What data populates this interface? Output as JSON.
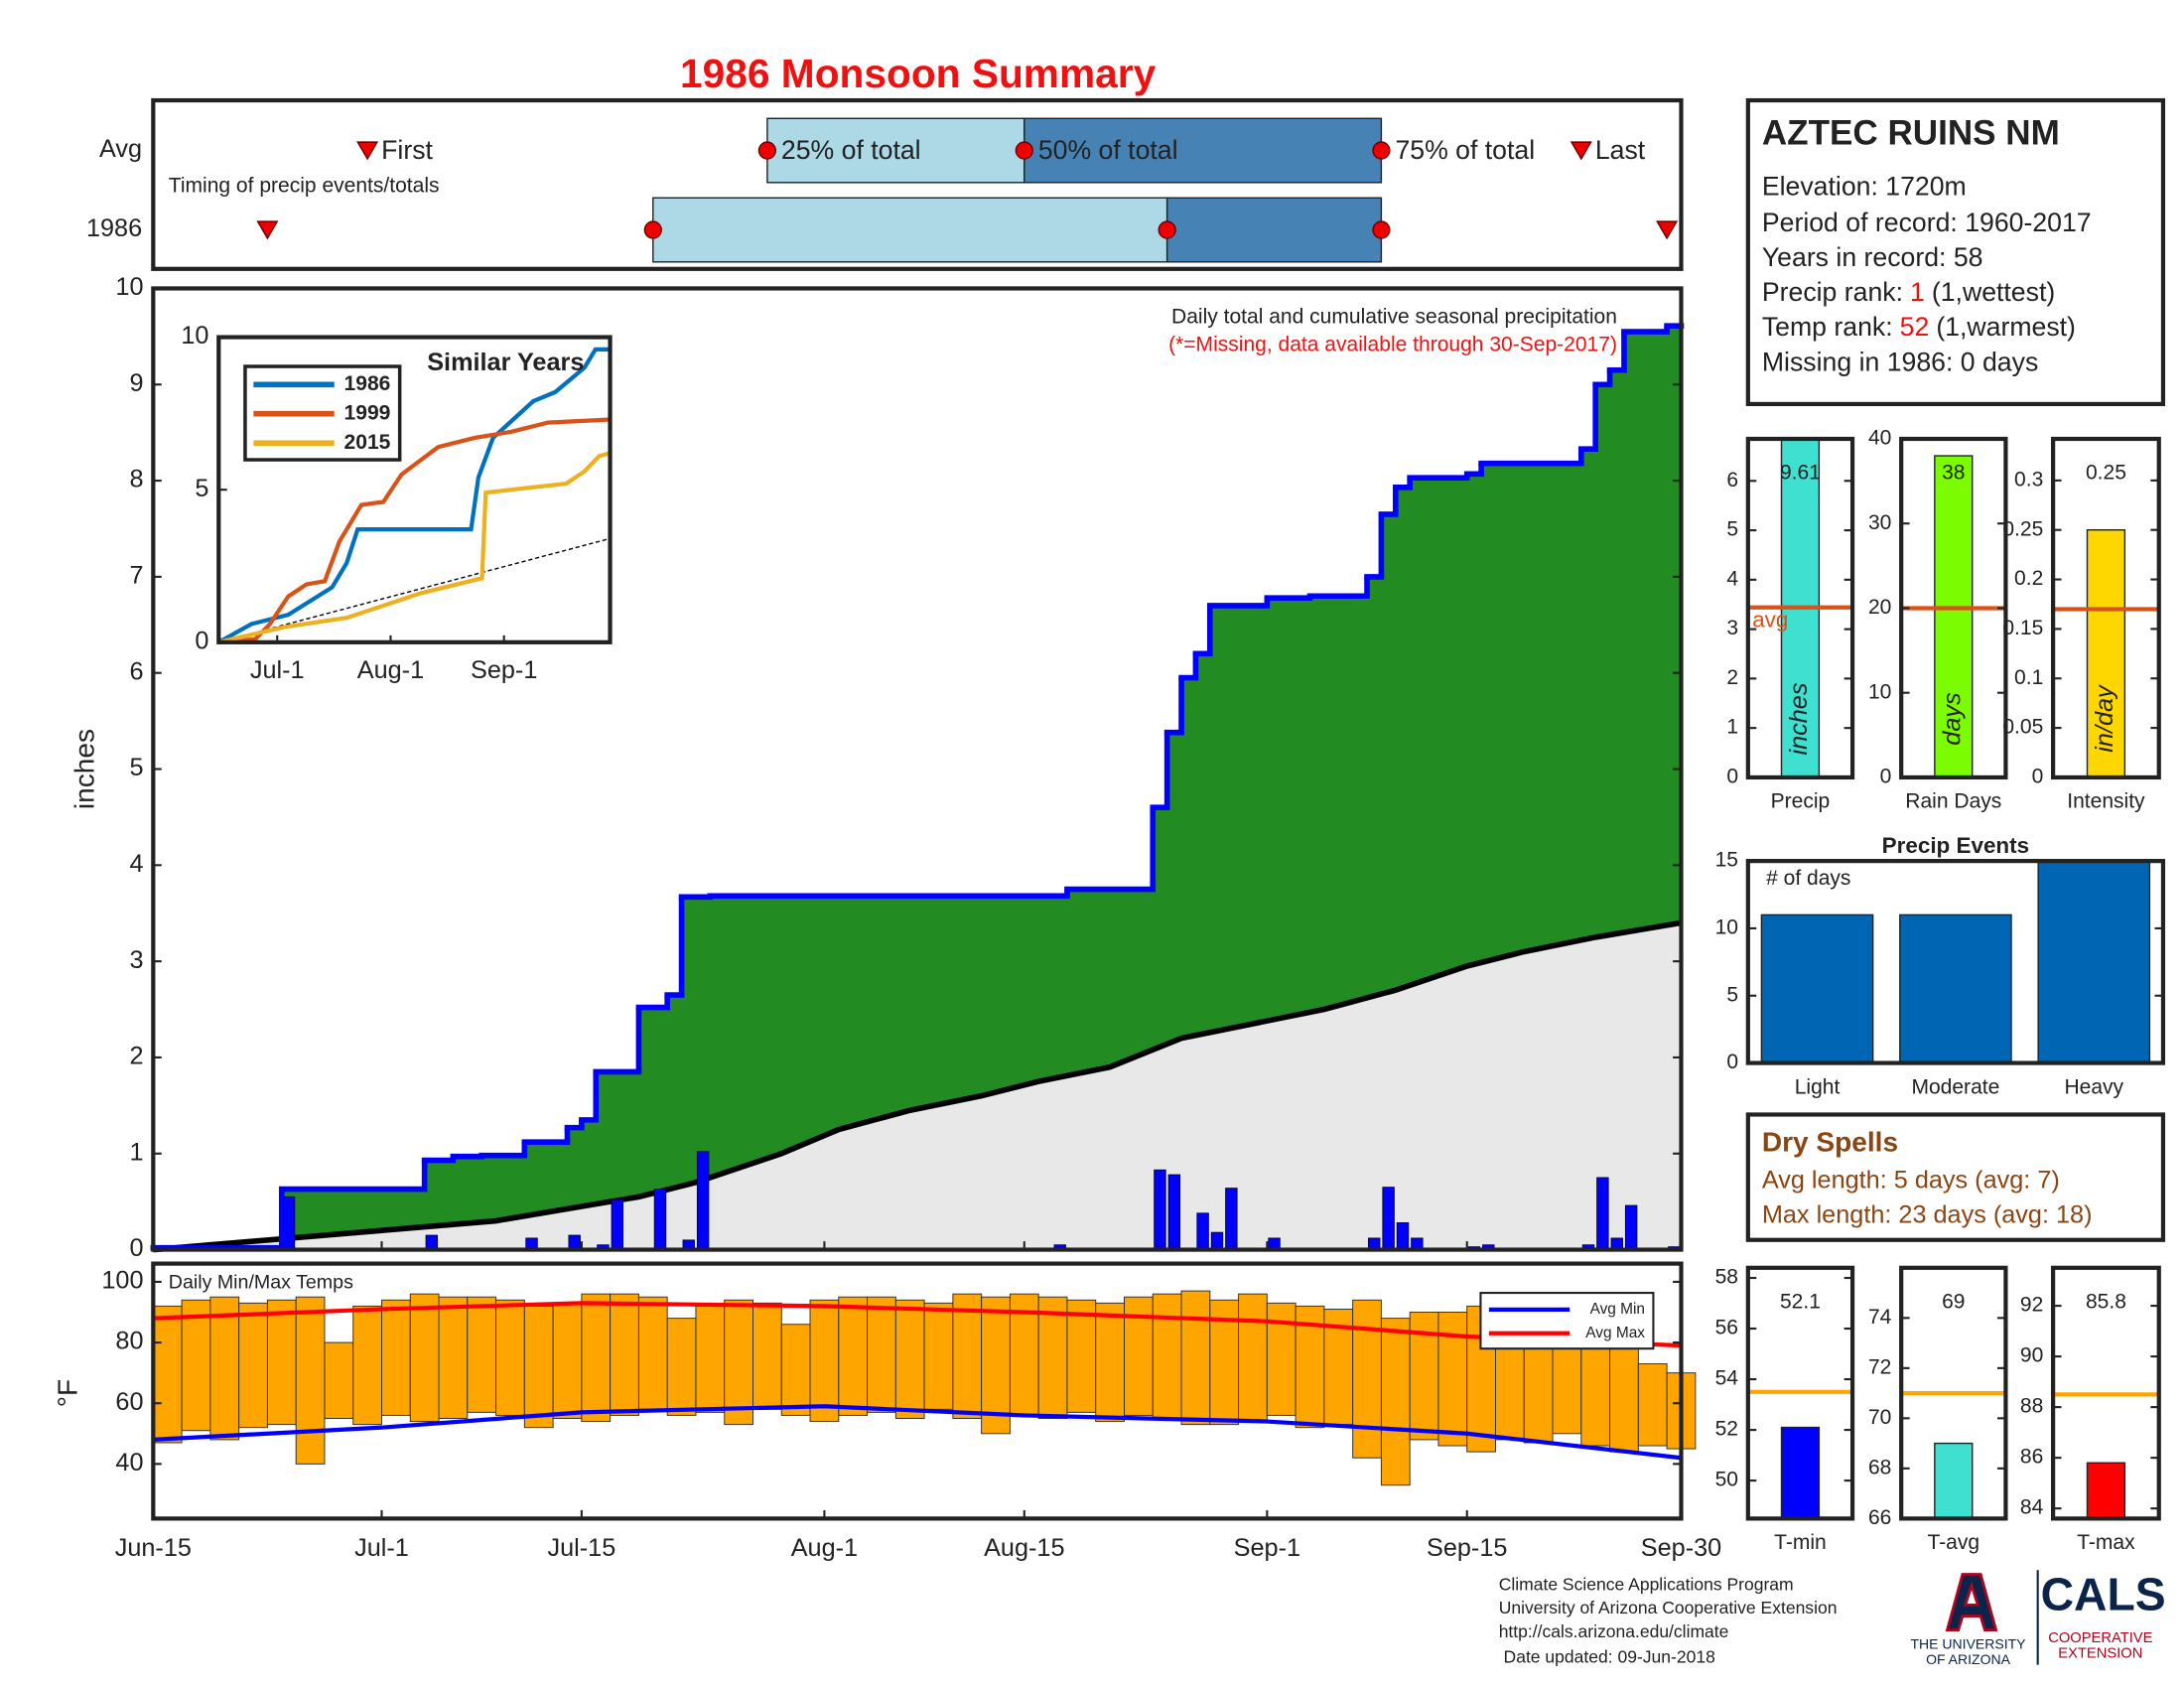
{
  "title": "1986 Monsoon Summary",
  "chart_data": [
    {
      "type": "timing",
      "title": "Timing of precip events/totals",
      "xlim": [
        0,
        107
      ],
      "rows": [
        {
          "name": "Avg",
          "first": 15,
          "q25": 43,
          "q50": 61,
          "q75": 86,
          "last": 100
        },
        {
          "name": "1986",
          "first": 8,
          "q25": 35,
          "q50": 71,
          "q75": 86,
          "last": 106
        }
      ],
      "labels": {
        "first": "First",
        "q25": "25% of total",
        "q50": "50% of total",
        "q75": "75% of total",
        "last": "Last"
      }
    },
    {
      "type": "precip",
      "title": "Daily total and cumulative seasonal precipitation",
      "subtitle": "(*=Missing, data available through 30-Sep-2017)",
      "y_label": "inches",
      "xlim": [
        0,
        107
      ],
      "ylim": [
        0,
        10
      ],
      "yticks": [
        0,
        1,
        2,
        3,
        4,
        5,
        6,
        7,
        8,
        9,
        10
      ],
      "fill_colors": {
        "above": "#228b22",
        "below": "#e8e8e8"
      },
      "cumulative": {
        "color": "#0000ff",
        "x": [
          0,
          9,
          19,
          21,
          23,
          26,
          29,
          30,
          31,
          34,
          36,
          37,
          39,
          64,
          70,
          71,
          72,
          73,
          74,
          78,
          81,
          85,
          86,
          87,
          88,
          92,
          93,
          100,
          101,
          102,
          103,
          106
        ],
        "values": [
          0.02,
          0.63,
          0.93,
          0.97,
          0.98,
          1.12,
          1.27,
          1.35,
          1.85,
          2.52,
          2.65,
          3.67,
          3.68,
          3.75,
          4.6,
          5.38,
          5.95,
          6.2,
          6.7,
          6.78,
          6.8,
          7,
          7.65,
          7.93,
          8.03,
          8.07,
          8.18,
          8.33,
          9,
          9.15,
          9.55,
          9.61
        ]
      },
      "average_cumulative": {
        "color": "#000000",
        "x": [
          0,
          16,
          24,
          34,
          38,
          44,
          48,
          53,
          58,
          62,
          67,
          72,
          77,
          82,
          87,
          92,
          96,
          101,
          107
        ],
        "values": [
          0,
          0.2,
          0.3,
          0.55,
          0.7,
          1,
          1.25,
          1.45,
          1.6,
          1.75,
          1.9,
          2.2,
          2.35,
          2.5,
          2.7,
          2.95,
          3.1,
          3.25,
          3.4
        ]
      },
      "daily": {
        "color": "#0000ff",
        "x": [
          9,
          19,
          26,
          29,
          31,
          32,
          35,
          37,
          38,
          63,
          70,
          71,
          73,
          74,
          75,
          78,
          85,
          86,
          87,
          88,
          92,
          93,
          100,
          101,
          102,
          103,
          106
        ],
        "values": [
          0.55,
          0.15,
          0.12,
          0.15,
          0.05,
          0.52,
          0.63,
          0.1,
          1.02,
          0.05,
          0.83,
          0.78,
          0.38,
          0.18,
          0.64,
          0.12,
          0.12,
          0.65,
          0.28,
          0.12,
          0.03,
          0.05,
          0.05,
          0.75,
          0.12,
          0.46,
          0.03
        ]
      }
    },
    {
      "type": "line",
      "title": "Similar Years",
      "xlim": [
        0,
        107
      ],
      "ylim": [
        0,
        10
      ],
      "yticks": [
        0,
        5,
        10
      ],
      "xticks": [
        {
          "value": 16,
          "label": "Jul-1"
        },
        {
          "value": 47,
          "label": "Aug-1"
        },
        {
          "value": 78,
          "label": "Sep-1"
        }
      ],
      "series": [
        {
          "name": "1986",
          "color": "#0072bd",
          "x": [
            0,
            9,
            19,
            31,
            35,
            38,
            69,
            71,
            75,
            86,
            92,
            100,
            103,
            107
          ],
          "values": [
            0,
            0.6,
            0.9,
            1.8,
            2.6,
            3.7,
            3.7,
            5.4,
            6.7,
            7.9,
            8.2,
            9,
            9.6,
            9.6
          ]
        },
        {
          "name": "1999",
          "color": "#d95319",
          "x": [
            0,
            10,
            14,
            19,
            24,
            29,
            33,
            39,
            45,
            50,
            60,
            70,
            80,
            90,
            107
          ],
          "values": [
            0,
            0.1,
            0.6,
            1.5,
            1.9,
            2,
            3.3,
            4.5,
            4.6,
            5.5,
            6.4,
            6.7,
            6.9,
            7.2,
            7.3
          ]
        },
        {
          "name": "2015",
          "color": "#edb120",
          "x": [
            0,
            18,
            35,
            45,
            55,
            72,
            73,
            80,
            95,
            100,
            104,
            107
          ],
          "values": [
            0,
            0.5,
            0.8,
            1.2,
            1.6,
            2.1,
            4.9,
            5,
            5.2,
            5.6,
            6.1,
            6.2
          ]
        }
      ],
      "average": {
        "color": "#000000",
        "x": [
          0,
          107
        ],
        "values": [
          0,
          3.4
        ]
      }
    },
    {
      "type": "temps",
      "title": "Daily Min/Max Temps",
      "y_label": "°F",
      "xlim": [
        0,
        107
      ],
      "ylim": [
        22,
        106
      ],
      "yticks": [
        40,
        60,
        80,
        100
      ],
      "xticks": [
        {
          "value": 0,
          "label": "Jun-15"
        },
        {
          "value": 16,
          "label": "Jul-1"
        },
        {
          "value": 30,
          "label": "Jul-15"
        },
        {
          "value": 47,
          "label": "Aug-1"
        },
        {
          "value": 61,
          "label": "Aug-15"
        },
        {
          "value": 78,
          "label": "Sep-1"
        },
        {
          "value": 92,
          "label": "Sep-15"
        },
        {
          "value": 107,
          "label": "Sep-30"
        }
      ],
      "bar_color": "#ffa500",
      "legend": "upper right",
      "x": [
        0,
        2,
        4,
        6,
        8,
        10,
        12,
        14,
        16,
        18,
        20,
        22,
        24,
        26,
        28,
        30,
        32,
        34,
        36,
        38,
        40,
        42,
        44,
        46,
        48,
        50,
        52,
        54,
        56,
        58,
        60,
        62,
        64,
        66,
        68,
        70,
        72,
        74,
        76,
        78,
        80,
        82,
        84,
        86,
        88,
        90,
        92,
        94,
        96,
        98,
        100,
        102,
        104,
        106
      ],
      "max": [
        92,
        94,
        95,
        93,
        94,
        95,
        80,
        92,
        94,
        96,
        95,
        95,
        94,
        92,
        93,
        96,
        96,
        95,
        88,
        92,
        94,
        93,
        86,
        94,
        95,
        95,
        94,
        93,
        96,
        95,
        96,
        95,
        94,
        93,
        95,
        96,
        97,
        94,
        96,
        93,
        92,
        91,
        94,
        88,
        90,
        90,
        92,
        89,
        83,
        85,
        88,
        84,
        73,
        70
      ],
      "min": [
        47,
        51,
        48,
        52,
        53,
        40,
        55,
        53,
        56,
        54,
        55,
        57,
        56,
        52,
        55,
        54,
        56,
        58,
        56,
        57,
        53,
        58,
        56,
        54,
        56,
        57,
        55,
        58,
        55,
        50,
        56,
        55,
        57,
        54,
        56,
        55,
        53,
        53,
        54,
        56,
        52,
        53,
        42,
        33,
        48,
        46,
        44,
        48,
        47,
        50,
        46,
        44,
        46,
        45
      ],
      "series": [
        {
          "name": "Avg Min",
          "color": "#0000ff",
          "x": [
            0,
            16,
            30,
            47,
            61,
            78,
            92,
            107
          ],
          "values": [
            48,
            52,
            57,
            59,
            56,
            54,
            50,
            42
          ]
        },
        {
          "name": "Avg Max",
          "color": "#ff0000",
          "x": [
            0,
            16,
            30,
            47,
            61,
            78,
            92,
            107
          ],
          "values": [
            88,
            91,
            93,
            92,
            90,
            87,
            82,
            79
          ]
        }
      ]
    },
    {
      "type": "gauge",
      "category": "Precip",
      "value": 9.61,
      "avg": 3.44,
      "avg_label": "avg",
      "unit_label": "inches",
      "color": "#40e0d0",
      "avg_color": "#d95319",
      "ylim": [
        0,
        6.85
      ],
      "yticks": [
        0,
        1,
        2,
        3,
        4,
        5,
        6
      ]
    },
    {
      "type": "gauge",
      "category": "Rain Days",
      "value": 38,
      "avg": 20,
      "unit_label": "days",
      "color": "#7cfc00",
      "avg_color": "#d95319",
      "ylim": [
        0,
        40
      ],
      "yticks": [
        0,
        10,
        20,
        30,
        40
      ]
    },
    {
      "type": "gauge",
      "category": "Intensity",
      "value": 0.25,
      "avg": 0.17,
      "unit_label": "in/day",
      "color": "#ffd700",
      "avg_color": "#d95319",
      "ylim": [
        0,
        0.342
      ],
      "yticks": [
        0,
        0.05,
        0.1,
        0.15,
        0.2,
        0.25,
        0.3
      ]
    },
    {
      "type": "bar",
      "title": "Precip Events",
      "annotation": "# of days",
      "categories": [
        "Light",
        "Moderate",
        "Heavy"
      ],
      "values": [
        11,
        11,
        15
      ],
      "color": "#0066b3",
      "ylim": [
        0,
        15
      ],
      "yticks": [
        0,
        5,
        10,
        15
      ]
    },
    {
      "type": "gauge",
      "category": "T-min",
      "value": 52.1,
      "avg": 53.5,
      "color": "#0000ff",
      "avg_color": "#ffa500",
      "ylim": [
        48.5,
        58.4
      ],
      "yticks": [
        50,
        52,
        54,
        56,
        58
      ]
    },
    {
      "type": "gauge",
      "category": "T-avg",
      "value": 69,
      "avg": 71,
      "color": "#40e0d0",
      "avg_color": "#ffa500",
      "ylim": [
        66,
        76
      ],
      "yticks": [
        66,
        68,
        70,
        72,
        74
      ]
    },
    {
      "type": "gauge",
      "category": "T-max",
      "value": 85.8,
      "avg": 88.5,
      "color": "#ff0000",
      "avg_color": "#ffa500",
      "ylim": [
        83.6,
        93.5
      ],
      "yticks": [
        84,
        86,
        88,
        90,
        92
      ]
    }
  ],
  "station": {
    "name": "AZTEC RUINS NM",
    "elevation": "Elevation: 1720m",
    "period": "Period of record: 1960-2017",
    "years": "Years in record: 58",
    "precip_rank": {
      "label": "Precip rank:",
      "value": 1,
      "note": "(1,wettest)"
    },
    "temp_rank": {
      "label": "Temp rank:",
      "value": 52,
      "note": "(1,warmest)"
    },
    "missing": "Missing in 1986: 0 days"
  },
  "dry_spells": {
    "title": "Dry Spells",
    "avg_length": "Avg length: 5 days (avg: 7)",
    "max_length": "Max length: 23 days (avg: 18)"
  },
  "footer": {
    "lines": [
      "Climate Science Applications Program",
      "University of Arizona Cooperative Extension",
      "http://cals.arizona.edu/climate",
      " Date updated: 09-Jun-2018"
    ],
    "university": [
      "THE UNIVERSITY",
      "OF ARIZONA"
    ],
    "cals": "CALS",
    "extension": [
      "COOPERATIVE",
      "EXTENSION"
    ]
  }
}
